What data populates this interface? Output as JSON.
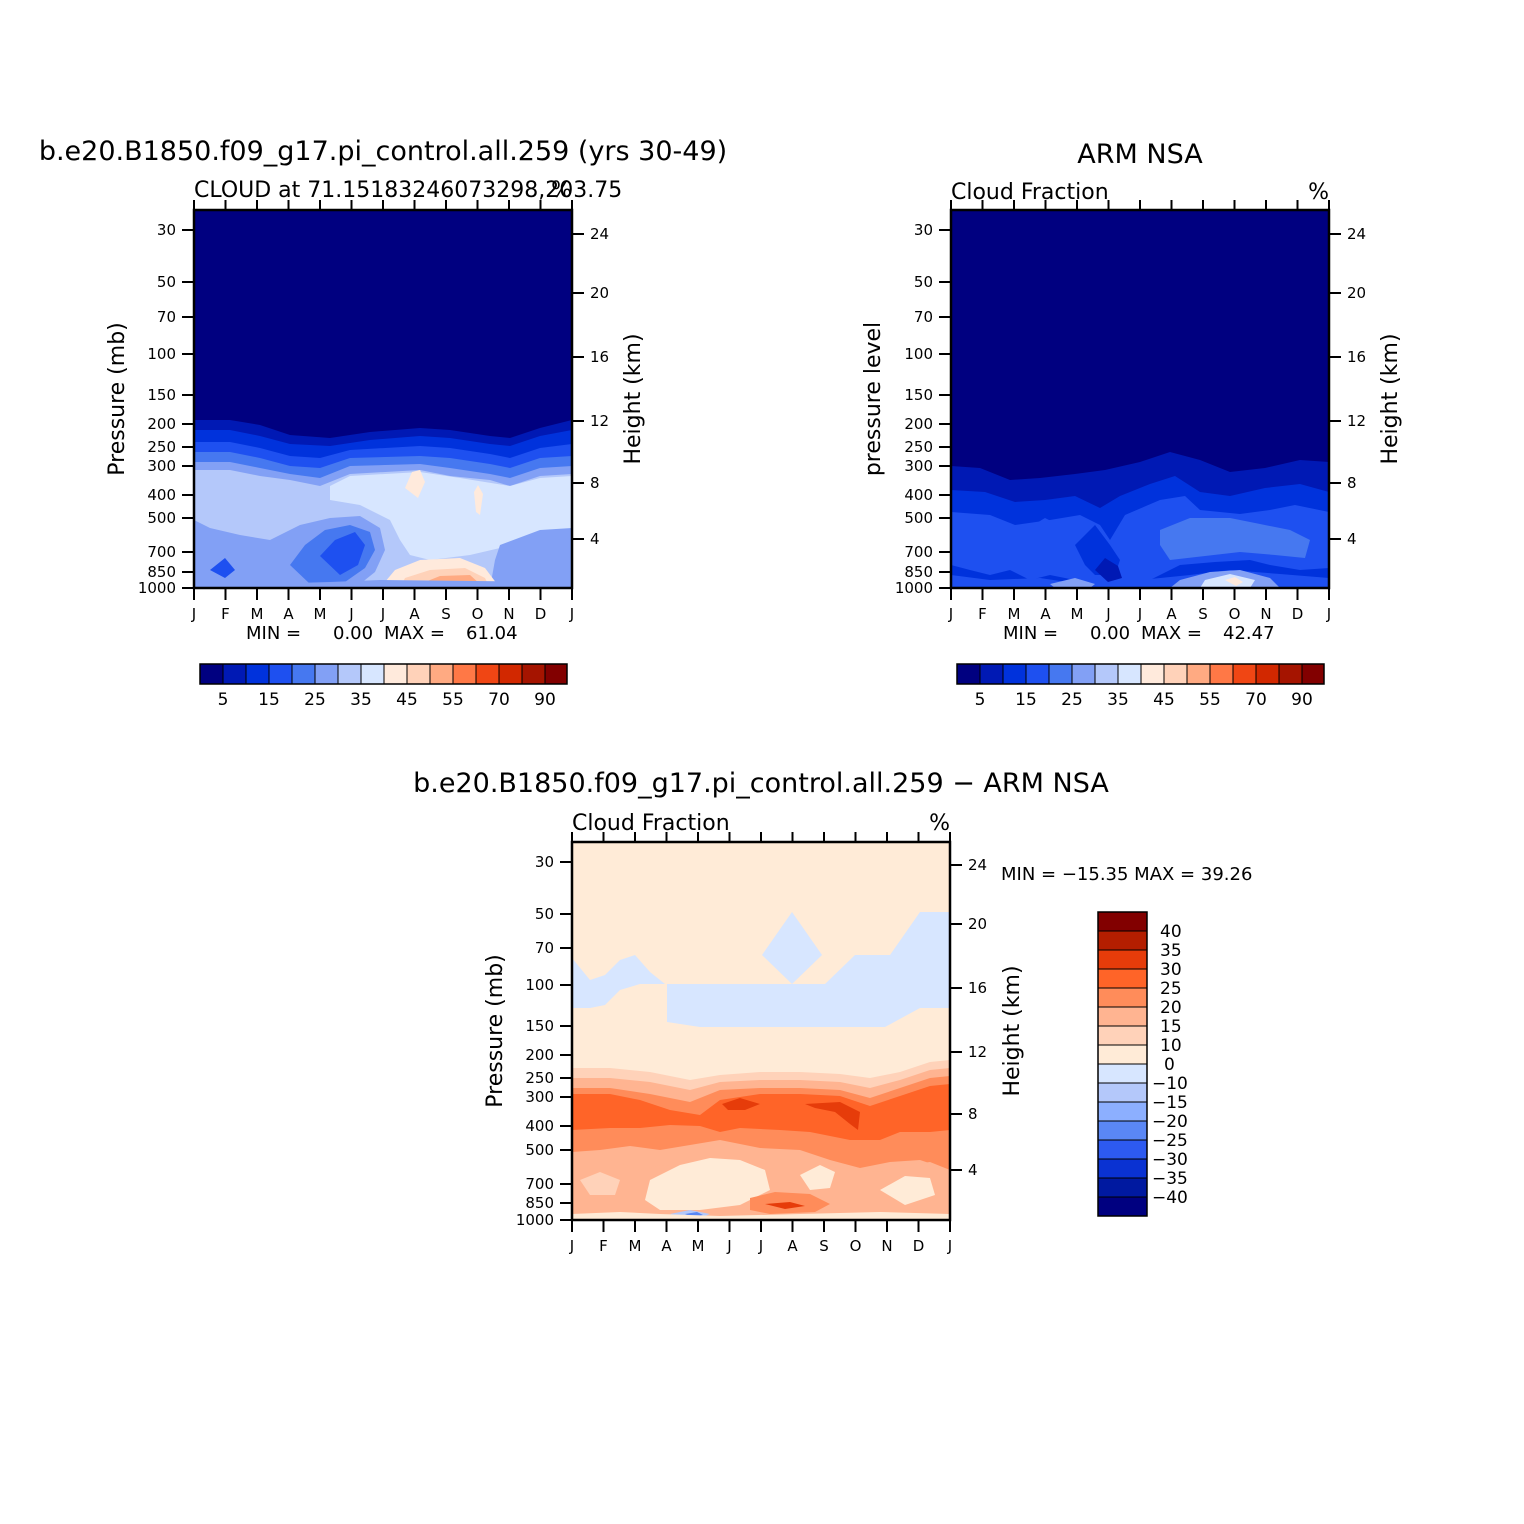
{
  "chart_data": [
    {
      "type": "contour",
      "title": "b.e20.B1850.f09_g17.pi_control.all.259 (yrs 30-49)",
      "subtitle_left": "CLOUD at 71.15183246073298,203.75",
      "subtitle_right": "%",
      "ylabel": "Pressure (mb)",
      "ylabel_right": "Height (km)",
      "x_ticks": [
        "J",
        "F",
        "M",
        "A",
        "M",
        "J",
        "J",
        "A",
        "S",
        "O",
        "N",
        "D",
        "J"
      ],
      "y_ticks": [
        "30",
        "50",
        "70",
        "100",
        "150",
        "200",
        "250",
        "300",
        "400",
        "500",
        "700",
        "850",
        "1000"
      ],
      "y_ticks_right": [
        "24",
        "20",
        "16",
        "12",
        "8",
        "4"
      ],
      "min_label": "MIN =",
      "min_value": "0.00",
      "max_label": "MAX =",
      "max_value": "61.04",
      "colorbar_labels": [
        "5",
        "15",
        "25",
        "35",
        "45",
        "55",
        "70",
        "90"
      ],
      "colors": [
        "#000080",
        "#0019b4",
        "#0032dc",
        "#1e50f0",
        "#4678f0",
        "#82a0f5",
        "#b4c8fa",
        "#d7e6ff",
        "#ffeadc",
        "#ffd2b9",
        "#ffaa82",
        "#ff7846",
        "#f04614",
        "#d22800",
        "#a51400",
        "#820000"
      ],
      "color_scale": {
        "low": "#000080",
        "high": "#820000"
      }
    },
    {
      "type": "contour",
      "title": "ARM NSA",
      "subtitle_left": "Cloud Fraction",
      "subtitle_right": "%",
      "ylabel": "pressure level",
      "ylabel_right": "Height (km)",
      "x_ticks": [
        "J",
        "F",
        "M",
        "A",
        "M",
        "J",
        "J",
        "A",
        "S",
        "O",
        "N",
        "D",
        "J"
      ],
      "y_ticks": [
        "30",
        "50",
        "70",
        "100",
        "150",
        "200",
        "250",
        "300",
        "400",
        "500",
        "700",
        "850",
        "1000"
      ],
      "y_ticks_right": [
        "24",
        "20",
        "16",
        "12",
        "8",
        "4"
      ],
      "min_label": "MIN =",
      "min_value": "0.00",
      "max_label": "MAX =",
      "max_value": "42.47",
      "colorbar_labels": [
        "5",
        "15",
        "25",
        "35",
        "45",
        "55",
        "70",
        "90"
      ]
    },
    {
      "type": "contour",
      "title": "b.e20.B1850.f09_g17.pi_control.all.259 − ARM NSA",
      "subtitle_left": "Cloud Fraction",
      "subtitle_right": "%",
      "ylabel": "Pressure (mb)",
      "ylabel_right": "Height (km)",
      "x_ticks": [
        "J",
        "F",
        "M",
        "A",
        "M",
        "J",
        "J",
        "A",
        "S",
        "O",
        "N",
        "D",
        "J"
      ],
      "y_ticks": [
        "30",
        "50",
        "70",
        "100",
        "150",
        "200",
        "250",
        "300",
        "400",
        "500",
        "700",
        "850",
        "1000"
      ],
      "y_ticks_right": [
        "24",
        "20",
        "16",
        "12",
        "8",
        "4"
      ],
      "stats_text": "MIN = −15.35 MAX = 39.26",
      "colorbar_labels": [
        "40",
        "35",
        "30",
        "25",
        "20",
        "15",
        "10",
        "0",
        "−10",
        "−15",
        "−20",
        "−25",
        "−30",
        "−35",
        "−40"
      ],
      "colors": [
        "#820000",
        "#b41e00",
        "#e63c0a",
        "#ff6428",
        "#ff8c5a",
        "#ffb491",
        "#ffd2b9",
        "#ffebd7",
        "#d7e6ff",
        "#b4c8fa",
        "#8cafff",
        "#5a87f5",
        "#2d5af0",
        "#0a32d2",
        "#0019a0",
        "#000080"
      ]
    }
  ]
}
